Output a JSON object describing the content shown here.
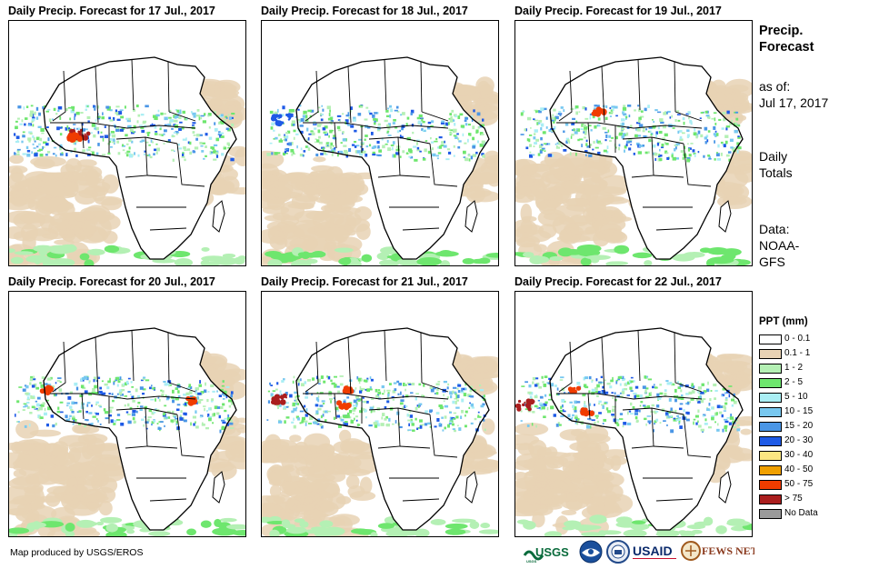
{
  "panels": [
    {
      "title": "Daily Precip. Forecast for 17 Jul., 2017"
    },
    {
      "title": "Daily Precip. Forecast for 18 Jul., 2017"
    },
    {
      "title": "Daily Precip. Forecast for 19 Jul., 2017"
    },
    {
      "title": "Daily Precip. Forecast for 20 Jul., 2017"
    },
    {
      "title": "Daily Precip. Forecast for 21 Jul., 2017"
    },
    {
      "title": "Daily Precip. Forecast for 22 Jul., 2017"
    }
  ],
  "sidebar": {
    "heading_line1": "Precip.",
    "heading_line2": "Forecast",
    "asof_line1": "as of:",
    "asof_line2": "Jul 17, 2017",
    "totals_line1": "Daily",
    "totals_line2": "Totals",
    "data_line1": "Data:",
    "data_line2": "NOAA-",
    "data_line3": "GFS"
  },
  "legend": {
    "title": "PPT (mm)",
    "items": [
      {
        "label": "0 - 0.1",
        "color": "#ffffff"
      },
      {
        "label": "0.1 - 1",
        "color": "#e8d2b4"
      },
      {
        "label": "1 - 2",
        "color": "#b4f0b4"
      },
      {
        "label": "2 - 5",
        "color": "#6ee66e"
      },
      {
        "label": "5 - 10",
        "color": "#aaeef4"
      },
      {
        "label": "10 - 15",
        "color": "#78c8f0"
      },
      {
        "label": "15 - 20",
        "color": "#4a96e6"
      },
      {
        "label": "20 - 30",
        "color": "#1e5ae6"
      },
      {
        "label": "30 - 40",
        "color": "#fae682"
      },
      {
        "label": "40 - 50",
        "color": "#f0a000"
      },
      {
        "label": "50 - 75",
        "color": "#f03c00"
      },
      {
        "label": "> 75",
        "color": "#aa1e1e"
      },
      {
        "label": "No Data",
        "color": "#9a9a9a"
      }
    ]
  },
  "credit": "Map produced by USGS/EROS",
  "logos": [
    "USGS",
    "NOAA",
    "DOI",
    "USAID",
    "FEWS NET"
  ]
}
